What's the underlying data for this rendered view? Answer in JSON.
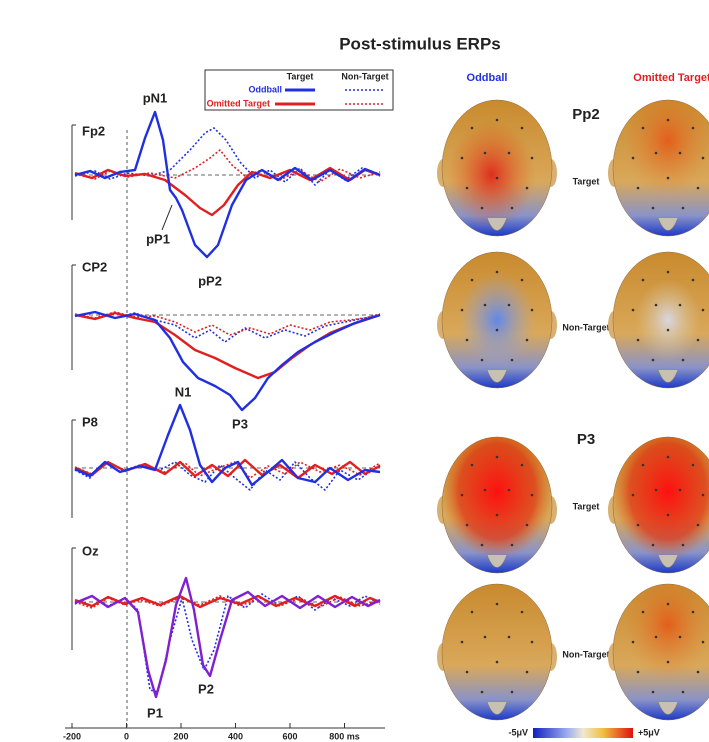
{
  "title": "Post-stimulus ERPs",
  "legend": {
    "target": "Target",
    "non_target": "Non-Target",
    "oddball": "Oddball",
    "omitted_target": "Omitted Target"
  },
  "channels": [
    {
      "label": "Fp2",
      "peaks": [
        "pN1",
        "pP1",
        "pP2"
      ]
    },
    {
      "label": "CP2",
      "peaks": [
        "P3"
      ]
    },
    {
      "label": "P8",
      "peaks": [
        "N1"
      ]
    },
    {
      "label": "Oz",
      "peaks": [
        "P1",
        "P2"
      ]
    }
  ],
  "x_axis": {
    "ticks": [
      "-200",
      "0",
      "200",
      "400",
      "600",
      "800 ms"
    ]
  },
  "topo": {
    "columns": [
      "Oddball",
      "Omitted Target"
    ],
    "components": [
      "Pp2",
      "P3"
    ],
    "rows": [
      "Target",
      "Non-Target",
      "Target",
      "Non-Target"
    ]
  },
  "colorbar": {
    "min": "-5μV",
    "max": "+5μV"
  }
}
